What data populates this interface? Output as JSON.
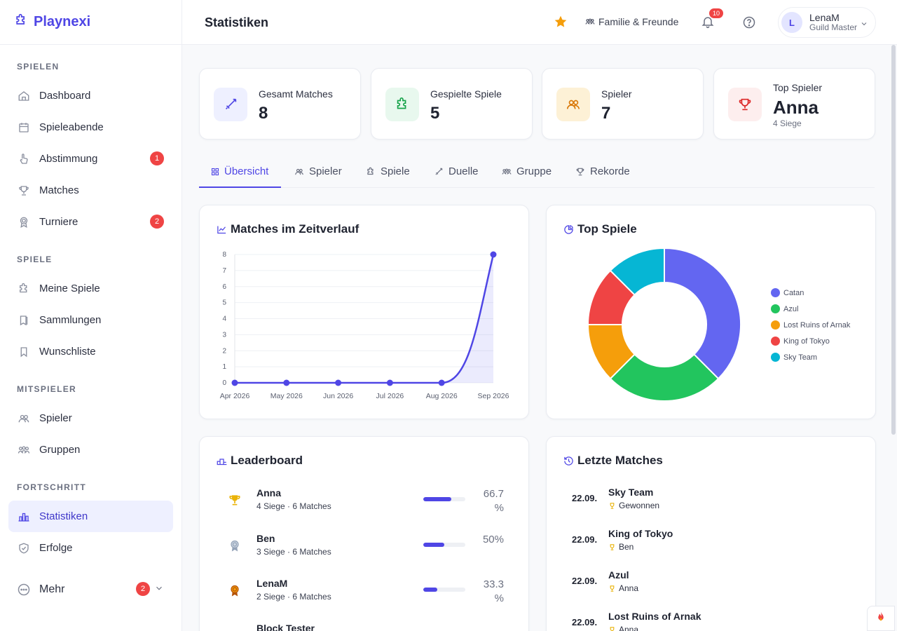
{
  "brand": {
    "name": "Playnexi"
  },
  "sidebar": {
    "sections": [
      {
        "title": "SPIELEN",
        "items": [
          {
            "label": "Dashboard",
            "icon": "home-icon"
          },
          {
            "label": "Spieleabende",
            "icon": "calendar-icon"
          },
          {
            "label": "Abstimmung",
            "icon": "hand-pointer-icon",
            "badge": "1"
          },
          {
            "label": "Matches",
            "icon": "trophy-icon"
          },
          {
            "label": "Turniere",
            "icon": "award-icon",
            "badge": "2"
          }
        ]
      },
      {
        "title": "SPIELE",
        "items": [
          {
            "label": "Meine Spiele",
            "icon": "puzzle-icon"
          },
          {
            "label": "Sammlungen",
            "icon": "books-icon"
          },
          {
            "label": "Wunschliste",
            "icon": "bookmark-icon"
          }
        ]
      },
      {
        "title": "MITSPIELER",
        "items": [
          {
            "label": "Spieler",
            "icon": "users-icon"
          },
          {
            "label": "Gruppen",
            "icon": "group-icon"
          }
        ]
      },
      {
        "title": "FORTSCHRITT",
        "items": [
          {
            "label": "Statistiken",
            "icon": "bar-chart-icon",
            "active": true
          },
          {
            "label": "Erfolge",
            "icon": "shield-check-icon"
          }
        ]
      }
    ],
    "more": {
      "label": "Mehr",
      "badge": "2"
    }
  },
  "header": {
    "title": "Statistiken",
    "family_label": "Familie & Freunde",
    "notification_count": "10",
    "user": {
      "initial": "L",
      "name": "LenaM",
      "role": "Guild Master"
    }
  },
  "stats": [
    {
      "label": "Gesamt Matches",
      "value": "8",
      "icon": "sword-icon",
      "color": "#eef0ff"
    },
    {
      "label": "Gespielte Spiele",
      "value": "5",
      "icon": "puzzle-icon",
      "color": "#e8f8ee"
    },
    {
      "label": "Spieler",
      "value": "7",
      "icon": "users-icon",
      "color": "#fdf1d6"
    },
    {
      "label": "Top Spieler",
      "value": "Anna",
      "sub": "4 Siege",
      "icon": "trophy-icon",
      "color": "#fdeeee"
    }
  ],
  "tabs": [
    {
      "label": "Übersicht",
      "active": true
    },
    {
      "label": "Spieler"
    },
    {
      "label": "Spiele"
    },
    {
      "label": "Duelle"
    },
    {
      "label": "Gruppe"
    },
    {
      "label": "Rekorde"
    }
  ],
  "panels": {
    "timeline_title": "Matches im Zeitverlauf",
    "top_games_title": "Top Spiele",
    "leaderboard_title": "Leaderboard",
    "recent_title": "Letzte Matches"
  },
  "chart_data": [
    {
      "type": "line",
      "title": "Matches im Zeitverlauf",
      "x": [
        "Apr 2026",
        "May 2026",
        "Jun 2026",
        "Jul 2026",
        "Aug 2026",
        "Sep 2026"
      ],
      "series": [
        {
          "values": [
            0,
            0,
            0,
            0,
            0,
            8
          ]
        }
      ],
      "ylim": [
        0,
        8
      ],
      "yticks": [
        "0",
        "1",
        "2",
        "3",
        "4",
        "5",
        "6",
        "7",
        "8"
      ],
      "grid": true,
      "color": "#4f46e5"
    },
    {
      "type": "pie",
      "title": "Top Spiele",
      "categories": [
        "Catan",
        "Azul",
        "Lost Ruins of Arnak",
        "King of Tokyo",
        "Sky Team"
      ],
      "values": [
        3,
        2,
        1,
        1,
        1
      ],
      "colors": [
        "#6366f1",
        "#22c55e",
        "#f59e0b",
        "#ef4444",
        "#06b6d4"
      ],
      "legend": "right"
    }
  ],
  "leaderboard": [
    {
      "name": "Anna",
      "stats": "4 Siege · 6 Matches",
      "pct": "66.7 %",
      "ratio": 0.667,
      "medal": "gold-trophy-icon"
    },
    {
      "name": "Ben",
      "stats": "3 Siege · 6 Matches",
      "pct": "50%",
      "ratio": 0.5,
      "medal": "silver-medal-icon"
    },
    {
      "name": "LenaM",
      "stats": "2 Siege · 6 Matches",
      "pct": "33.3 %",
      "ratio": 0.333,
      "medal": "bronze-medal-icon"
    },
    {
      "name": "Block Tester",
      "stats": "",
      "pct": "",
      "ratio": 0,
      "medal": ""
    }
  ],
  "recent_matches": [
    {
      "date": "22.09.",
      "game": "Sky Team",
      "winner": "Gewonnen"
    },
    {
      "date": "22.09.",
      "game": "King of Tokyo",
      "winner": "Ben"
    },
    {
      "date": "22.09.",
      "game": "Azul",
      "winner": "Anna"
    },
    {
      "date": "22.09.",
      "game": "Lost Ruins of Arnak",
      "winner": "Anna"
    }
  ]
}
